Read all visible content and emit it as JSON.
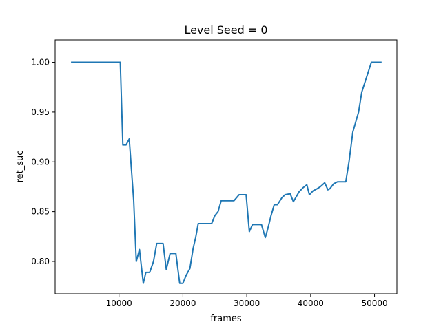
{
  "chart_data": {
    "type": "line",
    "title": "Level Seed = 0",
    "xlabel": "frames",
    "ylabel": "ret_suc",
    "xlim": [
      0,
      53500
    ],
    "ylim": [
      0.7675,
      1.0225
    ],
    "x_ticks": [
      10000,
      20000,
      30000,
      40000,
      50000
    ],
    "x_tick_labels": [
      "10000",
      "20000",
      "30000",
      "40000",
      "50000"
    ],
    "y_ticks": [
      0.8,
      0.85,
      0.9,
      0.95,
      1.0
    ],
    "y_tick_labels": [
      "0.80",
      "0.85",
      "0.90",
      "0.95",
      "1.00"
    ],
    "grid": false,
    "series": [
      {
        "name": "",
        "color": "#1f77b4",
        "x": [
          2600,
          10200,
          10600,
          11100,
          11600,
          12300,
          12700,
          13200,
          13800,
          14200,
          14800,
          15400,
          15900,
          16900,
          17400,
          18000,
          18900,
          19500,
          20000,
          20500,
          21100,
          21600,
          22000,
          22400,
          24500,
          25000,
          25500,
          26000,
          28000,
          28800,
          29400,
          29900,
          30400,
          30900,
          32300,
          32900,
          33300,
          33800,
          34300,
          34800,
          35500,
          36000,
          36800,
          37300,
          38200,
          38800,
          39400,
          39800,
          40400,
          41000,
          41500,
          42200,
          42700,
          43000,
          43600,
          44200,
          45500,
          46000,
          46600,
          47500,
          48000,
          49500,
          51000
        ],
        "y": [
          1.0,
          1.0,
          0.917,
          0.917,
          0.923,
          0.861,
          0.8,
          0.812,
          0.778,
          0.789,
          0.789,
          0.8,
          0.818,
          0.818,
          0.792,
          0.808,
          0.808,
          0.778,
          0.778,
          0.786,
          0.793,
          0.813,
          0.824,
          0.838,
          0.838,
          0.846,
          0.85,
          0.861,
          0.861,
          0.867,
          0.867,
          0.867,
          0.83,
          0.837,
          0.837,
          0.824,
          0.833,
          0.846,
          0.857,
          0.857,
          0.864,
          0.867,
          0.868,
          0.86,
          0.87,
          0.874,
          0.877,
          0.867,
          0.871,
          0.873,
          0.875,
          0.879,
          0.872,
          0.873,
          0.878,
          0.88,
          0.88,
          0.9,
          0.93,
          0.95,
          0.97,
          1.0,
          1.0
        ]
      }
    ]
  }
}
